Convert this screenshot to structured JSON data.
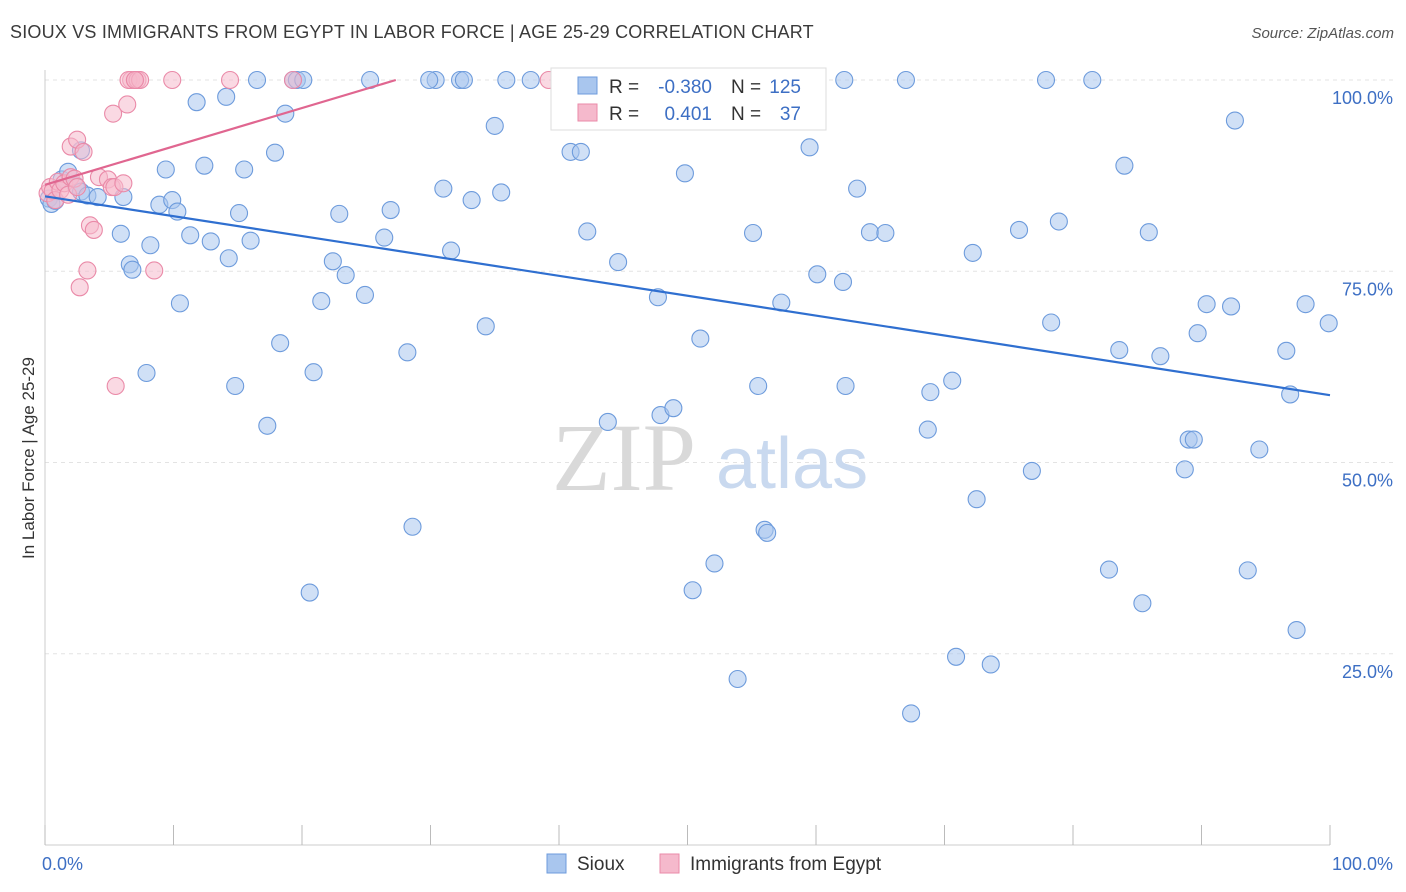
{
  "title": "SIOUX VS IMMIGRANTS FROM EGYPT IN LABOR FORCE | AGE 25-29 CORRELATION CHART",
  "source": "Source: ZipAtlas.com",
  "watermark": {
    "part1": "ZIP",
    "part2": "atlas"
  },
  "colors": {
    "sioux": "#a9c6ee",
    "sioux_stroke": "#6d9bdc",
    "sioux_line": "#2f6fd0",
    "egypt": "#f5b9cc",
    "egypt_stroke": "#ea8aa8",
    "egypt_line": "#e06690",
    "accent_text": "#3d6fc4"
  },
  "legend": {
    "rows": [
      {
        "r_label": "R =",
        "r_value": "-0.380",
        "n_label": "N =",
        "n_value": "125"
      },
      {
        "r_label": "R =",
        "r_value": "0.401",
        "n_label": "N =",
        "n_value": "37"
      }
    ]
  },
  "chart_data": {
    "type": "scatter",
    "title": "SIOUX VS IMMIGRANTS FROM EGYPT IN LABOR FORCE | AGE 25-29 CORRELATION CHART",
    "xlabel": "",
    "ylabel": "In Labor Force | Age 25-29",
    "xlim": [
      0,
      100
    ],
    "ylim": [
      0,
      100
    ],
    "x_tick_labels": [
      "0.0%",
      "100.0%"
    ],
    "y_ticks": [
      25,
      50,
      75,
      100
    ],
    "y_tick_labels": [
      "25.0%",
      "50.0%",
      "75.0%",
      "100.0%"
    ],
    "grid": true,
    "legend_position": "bottom",
    "series": [
      {
        "name": "Sioux",
        "color": "#a9c6ee",
        "trend": {
          "x": [
            0,
            100
          ],
          "y": [
            84.8,
            58.8
          ]
        },
        "points": [
          [
            0.3,
            84.5
          ],
          [
            0.5,
            83.8
          ],
          [
            0.8,
            84.2
          ],
          [
            1.3,
            87.0
          ],
          [
            1.8,
            88.0
          ],
          [
            2.4,
            86.2
          ],
          [
            2.8,
            85.4
          ],
          [
            3.3,
            84.9
          ],
          [
            4.1,
            84.7
          ],
          [
            2.8,
            90.8
          ],
          [
            6.1,
            84.7
          ],
          [
            5.9,
            79.9
          ],
          [
            6.6,
            75.9
          ],
          [
            6.8,
            75.2
          ],
          [
            7.9,
            61.7
          ],
          [
            8.2,
            78.4
          ],
          [
            8.9,
            83.7
          ],
          [
            9.4,
            88.3
          ],
          [
            9.9,
            84.3
          ],
          [
            10.3,
            82.8
          ],
          [
            10.5,
            70.8
          ],
          [
            11.3,
            79.7
          ],
          [
            11.8,
            97.1
          ],
          [
            12.4,
            88.8
          ],
          [
            12.9,
            78.9
          ],
          [
            14.1,
            97.8
          ],
          [
            14.3,
            76.7
          ],
          [
            14.8,
            60.0
          ],
          [
            15.1,
            82.6
          ],
          [
            15.5,
            88.3
          ],
          [
            16.0,
            79.0
          ],
          [
            16.5,
            100.0
          ],
          [
            17.3,
            54.8
          ],
          [
            17.9,
            90.5
          ],
          [
            18.3,
            65.6
          ],
          [
            18.7,
            95.6
          ],
          [
            19.3,
            100.0
          ],
          [
            19.6,
            100.0
          ],
          [
            20.1,
            100.0
          ],
          [
            20.6,
            33.0
          ],
          [
            20.9,
            61.8
          ],
          [
            21.5,
            71.1
          ],
          [
            22.4,
            76.3
          ],
          [
            22.9,
            82.5
          ],
          [
            23.4,
            74.5
          ],
          [
            24.9,
            71.9
          ],
          [
            25.3,
            100.0
          ],
          [
            26.4,
            79.4
          ],
          [
            26.9,
            83.0
          ],
          [
            28.2,
            64.4
          ],
          [
            28.6,
            41.6
          ],
          [
            30.4,
            100.0
          ],
          [
            31.0,
            85.8
          ],
          [
            31.6,
            77.7
          ],
          [
            32.3,
            100.0
          ],
          [
            32.6,
            100.0
          ],
          [
            33.2,
            84.3
          ],
          [
            34.3,
            67.8
          ],
          [
            35.0,
            94.0
          ],
          [
            35.5,
            85.3
          ],
          [
            35.9,
            100.0
          ],
          [
            37.8,
            100.0
          ],
          [
            40.1,
            100.0
          ],
          [
            40.9,
            90.6
          ],
          [
            41.7,
            90.6
          ],
          [
            42.2,
            80.2
          ],
          [
            43.8,
            55.3
          ],
          [
            44.6,
            76.2
          ],
          [
            47.7,
            71.6
          ],
          [
            47.9,
            56.2
          ],
          [
            48.9,
            57.1
          ],
          [
            49.8,
            87.8
          ],
          [
            50.4,
            33.3
          ],
          [
            51.0,
            66.2
          ],
          [
            52.1,
            36.8
          ],
          [
            53.9,
            21.7
          ],
          [
            55.1,
            80.0
          ],
          [
            55.5,
            60.0
          ],
          [
            56.0,
            41.2
          ],
          [
            57.3,
            70.9
          ],
          [
            59.5,
            91.2
          ],
          [
            60.1,
            74.6
          ],
          [
            62.2,
            100.0
          ],
          [
            62.1,
            73.6
          ],
          [
            63.2,
            85.8
          ],
          [
            64.2,
            80.1
          ],
          [
            65.4,
            80.0
          ],
          [
            67.0,
            100.0
          ],
          [
            67.4,
            17.2
          ],
          [
            68.7,
            54.3
          ],
          [
            68.9,
            59.2
          ],
          [
            70.6,
            60.7
          ],
          [
            70.9,
            24.6
          ],
          [
            72.2,
            77.4
          ],
          [
            72.5,
            45.2
          ],
          [
            73.6,
            23.6
          ],
          [
            75.8,
            80.4
          ],
          [
            76.8,
            48.9
          ],
          [
            77.9,
            100.0
          ],
          [
            78.3,
            68.3
          ],
          [
            78.9,
            81.5
          ],
          [
            81.5,
            100.0
          ],
          [
            82.8,
            36.0
          ],
          [
            83.6,
            64.7
          ],
          [
            84.0,
            88.8
          ],
          [
            85.4,
            31.6
          ],
          [
            85.9,
            80.1
          ],
          [
            86.8,
            63.9
          ],
          [
            88.7,
            49.1
          ],
          [
            89.0,
            53.0
          ],
          [
            89.4,
            53.0
          ],
          [
            89.7,
            66.9
          ],
          [
            90.4,
            70.7
          ],
          [
            92.3,
            70.4
          ],
          [
            92.6,
            94.7
          ],
          [
            93.6,
            35.9
          ],
          [
            94.5,
            51.7
          ],
          [
            96.6,
            64.6
          ],
          [
            96.9,
            58.9
          ],
          [
            97.4,
            28.1
          ],
          [
            98.1,
            70.7
          ],
          [
            99.9,
            68.2
          ],
          [
            56.2,
            40.8
          ],
          [
            29.9,
            100.0
          ],
          [
            44.0,
            100.0
          ],
          [
            62.3,
            60.0
          ]
        ]
      },
      {
        "name": "Immigrants from Egypt",
        "color": "#f5b9cc",
        "trend": {
          "x": [
            0,
            27.3
          ],
          "y": [
            86.3,
            100.0
          ]
        },
        "points": [
          [
            0.2,
            85.2
          ],
          [
            0.4,
            86.0
          ],
          [
            0.6,
            85.5
          ],
          [
            0.8,
            84.3
          ],
          [
            1.0,
            86.7
          ],
          [
            1.2,
            85.6
          ],
          [
            1.5,
            86.5
          ],
          [
            1.8,
            85.0
          ],
          [
            2.0,
            87.3
          ],
          [
            2.3,
            87.1
          ],
          [
            2.5,
            86.0
          ],
          [
            2.0,
            91.3
          ],
          [
            2.5,
            92.2
          ],
          [
            3.0,
            90.6
          ],
          [
            3.3,
            75.1
          ],
          [
            2.7,
            72.9
          ],
          [
            3.5,
            81.0
          ],
          [
            3.8,
            80.4
          ],
          [
            4.2,
            87.3
          ],
          [
            4.9,
            87.0
          ],
          [
            5.2,
            86.0
          ],
          [
            5.4,
            86.0
          ],
          [
            5.3,
            95.6
          ],
          [
            5.5,
            60.0
          ],
          [
            6.1,
            86.5
          ],
          [
            6.4,
            96.8
          ],
          [
            6.7,
            100.0
          ],
          [
            7.0,
            100.0
          ],
          [
            6.5,
            100.0
          ],
          [
            7.2,
            100.0
          ],
          [
            7.4,
            100.0
          ],
          [
            8.5,
            75.1
          ],
          [
            9.9,
            100.0
          ],
          [
            14.4,
            100.0
          ],
          [
            19.3,
            100.0
          ],
          [
            39.2,
            100.0
          ],
          [
            7.0,
            100.0
          ]
        ]
      }
    ]
  },
  "bottom_legend": {
    "items": [
      "Sioux",
      "Immigrants from Egypt"
    ]
  }
}
